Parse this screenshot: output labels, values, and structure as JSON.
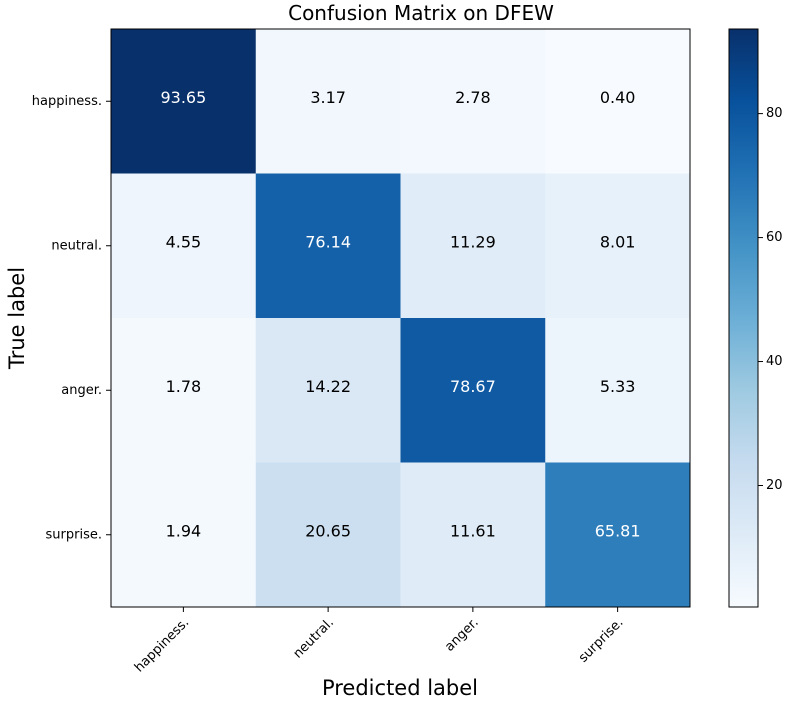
{
  "chart_data": {
    "type": "heatmap",
    "title": "Confusion Matrix on DFEW",
    "xlabel": "Predicted label",
    "ylabel": "True label",
    "x_categories": [
      "happiness.",
      "neutral.",
      "anger.",
      "surprise."
    ],
    "y_categories": [
      "happiness.",
      "neutral.",
      "anger.",
      "surprise."
    ],
    "values": [
      [
        93.65,
        3.17,
        2.78,
        0.4
      ],
      [
        4.55,
        76.14,
        11.29,
        8.01
      ],
      [
        1.78,
        14.22,
        78.67,
        5.33
      ],
      [
        1.94,
        20.65,
        11.61,
        65.81
      ]
    ],
    "value_labels": [
      [
        "93.65",
        "3.17",
        "2.78",
        "0.40"
      ],
      [
        "4.55",
        "76.14",
        "11.29",
        "8.01"
      ],
      [
        "1.78",
        "14.22",
        "78.67",
        "5.33"
      ],
      [
        "1.94",
        "20.65",
        "11.61",
        "65.81"
      ]
    ],
    "colormap": "Blues",
    "color_range": [
      0.4,
      93.65
    ],
    "colorbar": {
      "ticks": [
        20,
        40,
        60,
        80
      ],
      "tick_labels": [
        "20",
        "40",
        "60",
        "80"
      ]
    },
    "x_tick_rotation": "45 degrees",
    "grid": false
  }
}
